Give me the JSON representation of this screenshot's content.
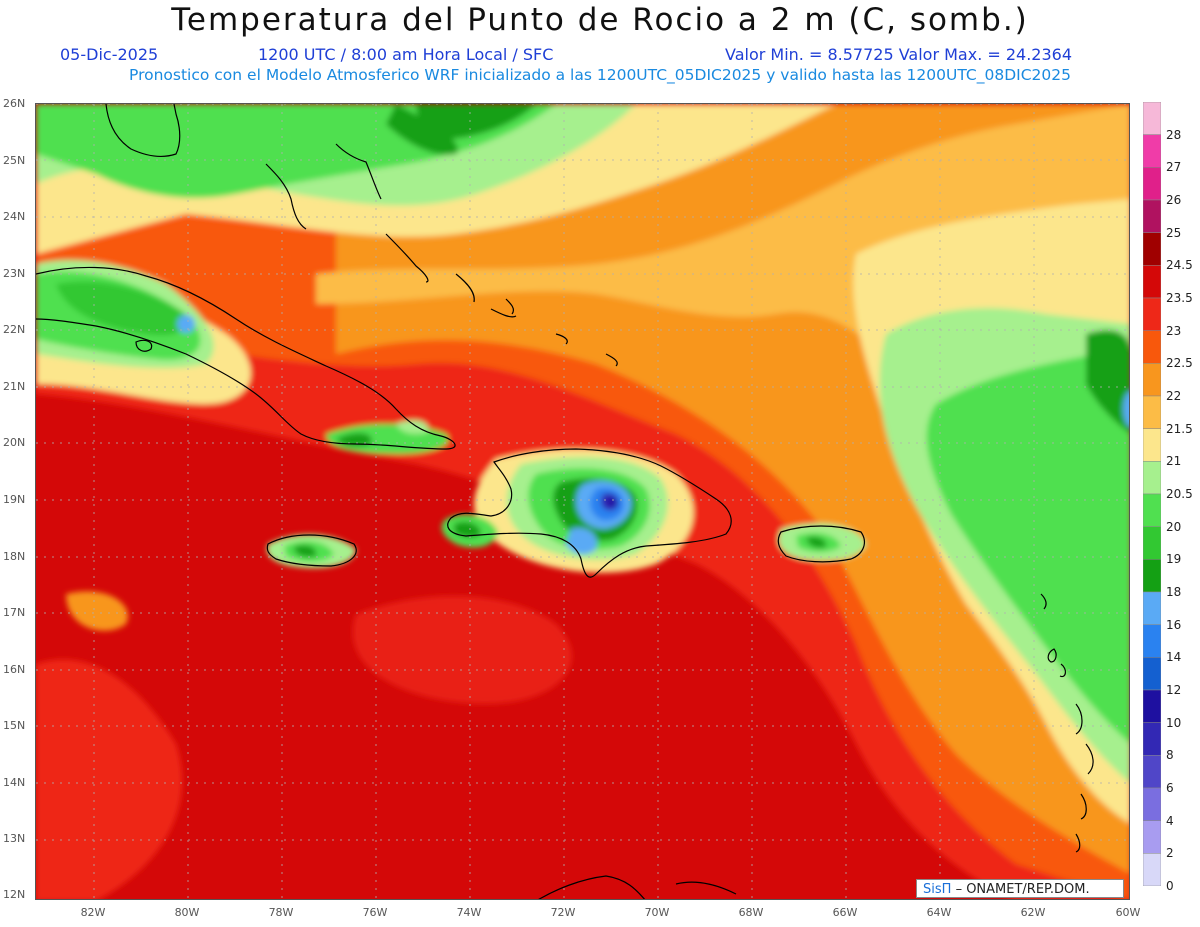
{
  "title": "Temperatura del Punto de Rocio a 2 m (C, somb.)",
  "subtitle": {
    "date": "05-Dic-2025",
    "time": "1200 UTC / 8:00 am Hora Local / SFC",
    "min_max": "Valor Min. = 8.57725  Valor Max. = 24.2364"
  },
  "forecast_note": "Pronostico con el Modelo Atmosferico WRF inicializado a las 1200UTC_05DIC2025 y valido hasta las  1200UTC_08DIC2025",
  "lat_labels": [
    "26N",
    "25N",
    "24N",
    "23N",
    "22N",
    "21N",
    "20N",
    "19N",
    "18N",
    "17N",
    "16N",
    "15N",
    "14N",
    "13N",
    "12N"
  ],
  "lon_labels": [
    "82W",
    "80W",
    "78W",
    "76W",
    "74W",
    "72W",
    "70W",
    "68W",
    "66W",
    "64W",
    "62W",
    "60W"
  ],
  "colorbar": {
    "labels": [
      "28",
      "27",
      "26",
      "25",
      "24.5",
      "23.5",
      "23",
      "22.5",
      "22",
      "21.5",
      "21",
      "20.5",
      "20",
      "19",
      "18",
      "16",
      "14",
      "12",
      "10",
      "8",
      "6",
      "4",
      "2",
      "0"
    ],
    "colors": [
      "#f6b8d8",
      "#f03ca8",
      "#e0208a",
      "#b01260",
      "#a00000",
      "#d40808",
      "#ee2818",
      "#f8580c",
      "#f8961e",
      "#fcbc46",
      "#fce68c",
      "#a6f08e",
      "#50e050",
      "#32c832",
      "#14a014",
      "#5aaaf5",
      "#2a82f0",
      "#1460d0",
      "#1e10a0",
      "#3228b4",
      "#5046c8",
      "#7a6ee0",
      "#a89cf0",
      "#d8d8f8"
    ]
  },
  "colors": {
    "sea_base": "#d40808",
    "warm": "#ee2818",
    "orange": "#f8961e",
    "light_orange": "#fcbc46",
    "yellow": "#fce68c",
    "light_green": "#a6f08e",
    "green": "#50e050",
    "dark_green": "#14a014",
    "blue": "#2a82f0",
    "deep_blue": "#1e10a0",
    "coast": "#000000"
  },
  "credit": {
    "brand": "SisΠ",
    "text": "– ONAMET/REP.DOM."
  }
}
